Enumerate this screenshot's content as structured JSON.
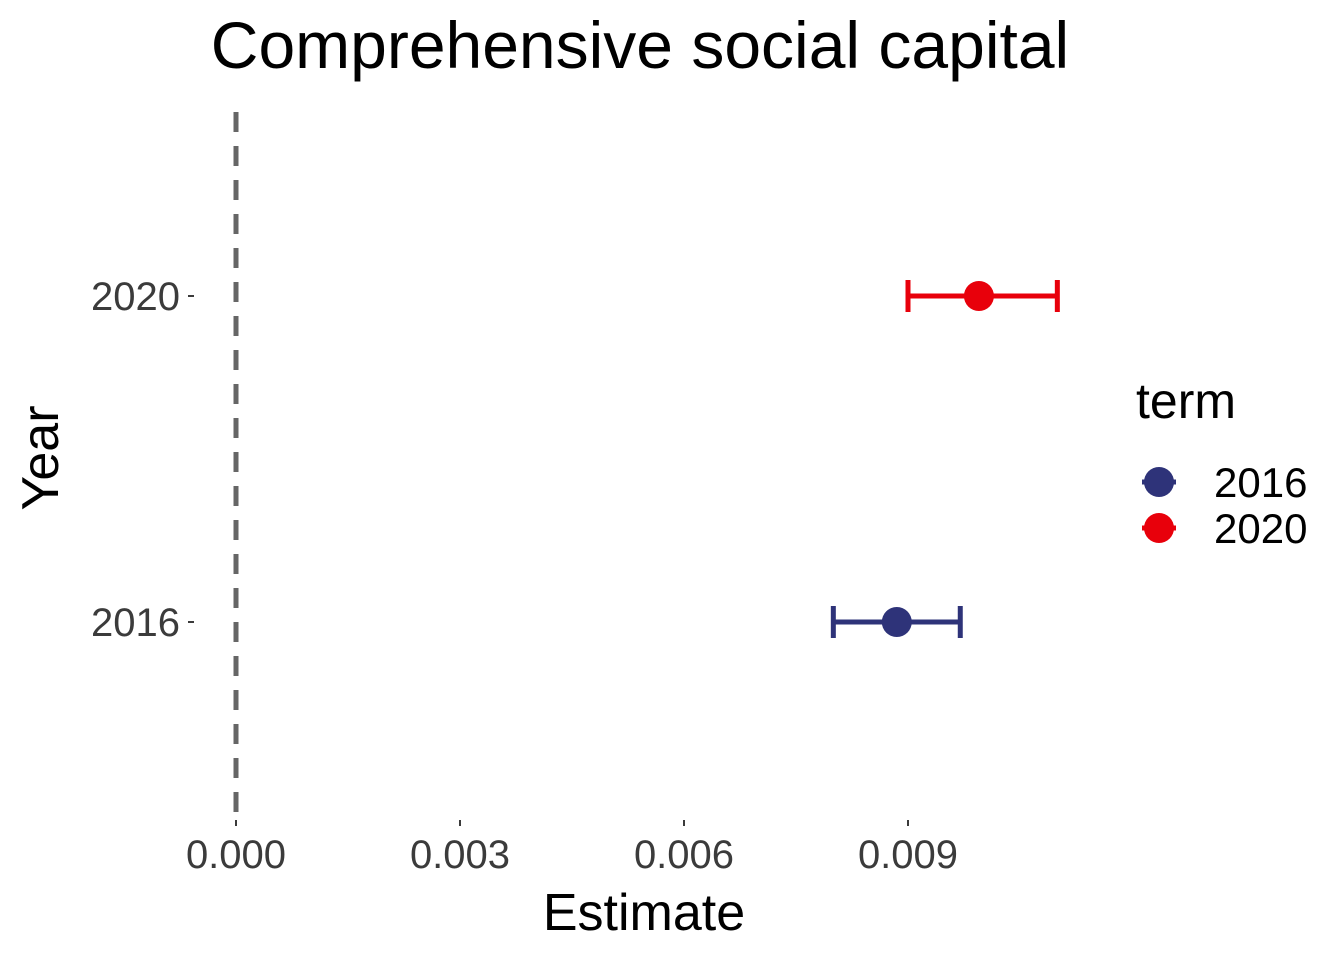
{
  "chart_data": {
    "type": "scatter",
    "title": "Comprehensive social capital",
    "xlabel": "Estimate",
    "ylabel": "Year",
    "x_ticks": [
      "0.000",
      "0.003",
      "0.006",
      "0.009"
    ],
    "y_categories": [
      "2016",
      "2020"
    ],
    "xlim": [
      0.0,
      0.0118
    ],
    "reference_line": {
      "x": 0.0,
      "style": "dashed",
      "color": "#666666"
    },
    "grid": false,
    "legend": {
      "title": "term",
      "position": "right",
      "entries": [
        {
          "label": "2016",
          "color": "#2e3379"
        },
        {
          "label": "2020",
          "color": "#e8000b"
        }
      ]
    },
    "series": [
      {
        "term": "2016",
        "y": "2016",
        "estimate": 0.00885,
        "conf_low": 0.008,
        "conf_high": 0.0097,
        "color": "#2e3379"
      },
      {
        "term": "2020",
        "y": "2020",
        "estimate": 0.00995,
        "conf_low": 0.009,
        "conf_high": 0.011,
        "color": "#e8000b"
      }
    ]
  }
}
